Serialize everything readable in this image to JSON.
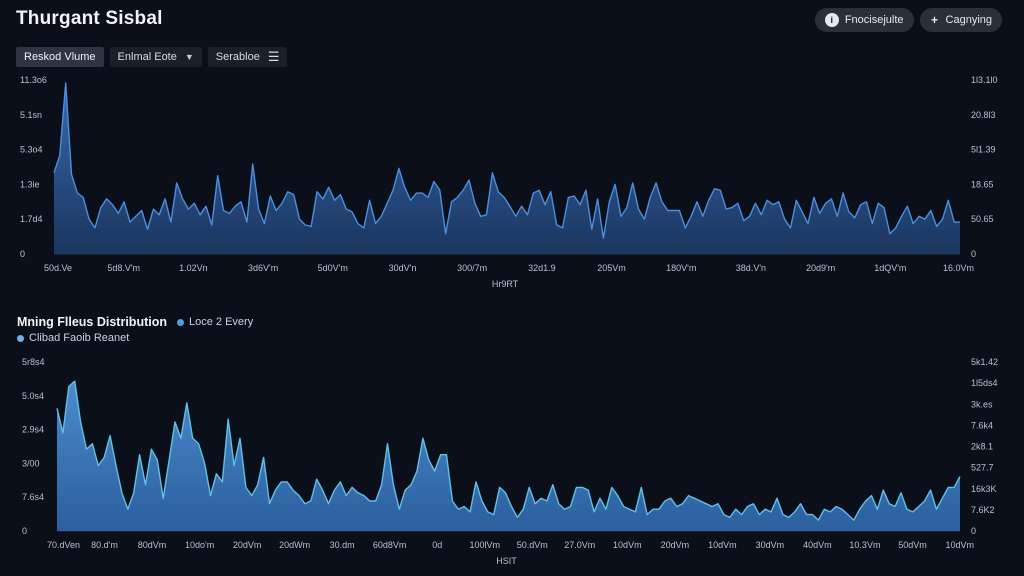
{
  "header": {
    "title": "Thurgant Sisbal",
    "buttons": [
      {
        "label": "Fnocisejulte",
        "icon": "info-icon"
      },
      {
        "label": "Cagnying",
        "icon": "plus-icon"
      }
    ]
  },
  "toolbar": {
    "items": [
      {
        "label": "Reskod Vlume",
        "active": true
      },
      {
        "label": "Enlmal Eote",
        "has_caret": true
      },
      {
        "label": "Serabloe",
        "has_menu_icon": true
      }
    ]
  },
  "section2": {
    "title": "Mning Flleus Distribution",
    "legend": [
      {
        "label": "Loce 2 Every",
        "color": "#4f9fe0"
      },
      {
        "label": "Clibad Faoib Reanet",
        "color": "#6fb0e8"
      }
    ]
  },
  "chart_data": [
    {
      "type": "area",
      "title": "",
      "xlabel": "Hr9RT",
      "ylabel": "",
      "y_left_ticks": [
        "11.3o6",
        "5.1sn",
        "5.3o4",
        "1.3ie",
        "1.7d4",
        "0"
      ],
      "y_right_ticks": [
        "1l3.1l0",
        "20.8l3",
        "5l1.39",
        "18.65",
        "50.65",
        "0"
      ],
      "x_ticks": [
        "50d.Ve",
        "5d8.V'm",
        "1.02Vn",
        "3d6V'm",
        "5d0V'm",
        "30dV'n",
        "300/7m",
        "32d1.9",
        "205Vm",
        "180V'm",
        "38d.V'n",
        "20d9'm",
        "1dQV'm",
        "16.0Vm"
      ],
      "color": "#3f7fcc",
      "series": [
        {
          "name": "main",
          "values": [
            5.6,
            6.8,
            11.8,
            5.5,
            4.2,
            3.9,
            2.4,
            1.8,
            3.2,
            3.8,
            3.4,
            2.8,
            3.6,
            2.2,
            2.6,
            3.0,
            1.7,
            3.1,
            2.7,
            3.8,
            2.2,
            4.9,
            3.8,
            3.1,
            3.5,
            2.7,
            3.3,
            2.0,
            5.4,
            3.0,
            2.8,
            3.3,
            3.6,
            2.2,
            6.2,
            3.1,
            2.1,
            4.0,
            3.0,
            3.5,
            4.3,
            4.1,
            2.4,
            2.0,
            1.9,
            4.3,
            3.8,
            4.6,
            3.7,
            4.1,
            3.1,
            2.9,
            2.1,
            1.8,
            3.7,
            2.1,
            2.6,
            3.5,
            4.4,
            5.9,
            4.6,
            3.7,
            4.2,
            4.2,
            3.9,
            5.0,
            4.4,
            1.4,
            3.6,
            3.9,
            4.4,
            5.1,
            3.5,
            2.6,
            2.7,
            5.6,
            4.3,
            3.9,
            3.3,
            2.6,
            3.3,
            2.7,
            4.2,
            4.4,
            3.4,
            4.3,
            2.0,
            1.8,
            3.9,
            4.0,
            3.4,
            4.4,
            1.7,
            3.8,
            1.1,
            3.6,
            4.8,
            2.6,
            3.2,
            4.9,
            3.1,
            2.4,
            3.9,
            4.9,
            3.6,
            3.0,
            3.0,
            3.0,
            1.8,
            2.6,
            3.6,
            2.6,
            3.7,
            4.5,
            4.4,
            3.1,
            3.2,
            3.5,
            2.3,
            2.6,
            3.5,
            2.7,
            3.7,
            3.4,
            3.6,
            2.4,
            1.8,
            3.7,
            2.9,
            2.1,
            3.9,
            2.8,
            3.5,
            3.8,
            2.6,
            4.2,
            2.9,
            2.5,
            3.4,
            3.6,
            2.1,
            3.5,
            3.2,
            1.4,
            1.8,
            2.6,
            3.3,
            2.1,
            2.6,
            2.4,
            3.0,
            1.9,
            2.4,
            3.7,
            2.2,
            2.2
          ]
        }
      ],
      "ylim": [
        0,
        12
      ]
    },
    {
      "type": "area",
      "title": "Mning Flleus Distribution",
      "xlabel": "HSIT",
      "ylabel": "",
      "y_left_ticks": [
        "5r8s4",
        "5.0s4",
        "2.9s4",
        "3/00",
        "7.6s4",
        "0"
      ],
      "y_right_ticks": [
        "5k1.42",
        "1l5ds4",
        "3k.es",
        "7.6k4",
        "2k8.1",
        "527.7",
        "16k3K",
        "7.6K2",
        "0"
      ],
      "x_ticks": [
        "70.dVen",
        "80.d'm",
        "80dVm",
        "10do'm",
        "20dVm",
        "20dWm",
        "30.dm",
        "60d8Vm",
        "0d",
        "100lVm",
        "50.dVm",
        "27.0Vm",
        "10dVm",
        "20dVm",
        "10dVm",
        "30dVm",
        "40dVm",
        "10.3Vm",
        "50dVm",
        "10dVm"
      ],
      "color": "#4a8fd6",
      "series": [
        {
          "name": "main",
          "values": [
            4.5,
            3.6,
            5.3,
            5.5,
            4.0,
            3.0,
            3.2,
            2.4,
            2.7,
            3.5,
            2.4,
            1.4,
            0.8,
            1.4,
            2.8,
            1.7,
            3.0,
            2.6,
            1.2,
            2.6,
            4.0,
            3.4,
            4.7,
            3.4,
            3.2,
            2.5,
            1.3,
            2.1,
            1.8,
            4.1,
            2.4,
            3.4,
            1.6,
            1.3,
            1.7,
            2.7,
            1.0,
            1.5,
            1.8,
            1.8,
            1.5,
            1.3,
            1.0,
            1.1,
            1.9,
            1.5,
            1.0,
            1.5,
            1.8,
            1.3,
            1.6,
            1.4,
            1.3,
            1.1,
            1.1,
            1.7,
            3.2,
            1.7,
            0.8,
            1.5,
            1.7,
            2.2,
            3.4,
            2.6,
            2.2,
            2.8,
            2.8,
            1.1,
            0.8,
            0.9,
            0.7,
            1.8,
            1.1,
            0.7,
            0.6,
            1.6,
            1.4,
            0.9,
            0.5,
            0.8,
            1.6,
            1.0,
            1.2,
            1.1,
            1.7,
            1.0,
            0.8,
            0.9,
            1.6,
            1.6,
            1.5,
            0.7,
            1.2,
            0.8,
            1.6,
            1.3,
            0.9,
            0.8,
            0.7,
            1.6,
            0.6,
            0.8,
            0.8,
            1.1,
            1.2,
            0.9,
            1.0,
            1.3,
            1.2,
            1.1,
            1.0,
            0.9,
            1.0,
            0.6,
            0.5,
            0.8,
            0.6,
            0.9,
            1.0,
            0.6,
            0.8,
            0.7,
            1.2,
            0.6,
            0.5,
            0.7,
            1.0,
            0.6,
            0.6,
            0.4,
            0.8,
            0.7,
            0.9,
            0.8,
            0.6,
            0.4,
            0.8,
            1.1,
            1.3,
            0.8,
            1.5,
            1.0,
            0.9,
            1.4,
            0.8,
            0.7,
            0.9,
            1.1,
            1.5,
            0.8,
            1.2,
            1.6,
            1.6,
            2.0
          ]
        }
      ],
      "ylim": [
        0,
        6.2
      ]
    }
  ]
}
